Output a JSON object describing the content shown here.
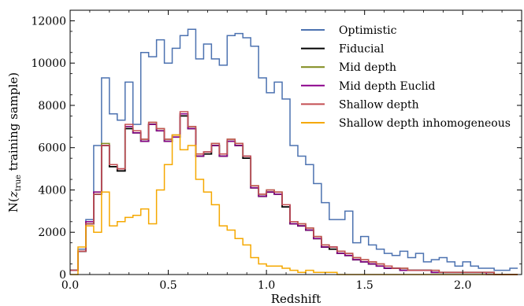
{
  "chart_data": {
    "type": "line",
    "title": "",
    "xlabel": "Redshift",
    "ylabel": "N(z_true training sample)",
    "ylabel_parts": {
      "prefix": "N(",
      "var": "z",
      "sub": "true",
      "suffix": " training sample)"
    },
    "xlim": [
      0.0,
      2.3
    ],
    "ylim": [
      0,
      12500
    ],
    "xticks": [
      0.0,
      0.5,
      1.0,
      1.5,
      2.0
    ],
    "xtick_labels": [
      "0.0",
      "0.5",
      "1.0",
      "1.5",
      "2.0"
    ],
    "yticks": [
      0,
      2000,
      4000,
      6000,
      8000,
      10000,
      12000
    ],
    "ytick_labels": [
      "0",
      "2000",
      "4000",
      "6000",
      "8000",
      "10000",
      "12000"
    ],
    "grid": false,
    "legend_position": "top-right",
    "bin_edges": [
      0.0,
      0.04,
      0.08,
      0.12,
      0.16,
      0.2,
      0.24,
      0.28,
      0.32,
      0.36,
      0.4,
      0.44,
      0.48,
      0.52,
      0.56,
      0.6,
      0.64,
      0.68,
      0.72,
      0.76,
      0.8,
      0.84,
      0.88,
      0.92,
      0.96,
      1.0,
      1.04,
      1.08,
      1.12,
      1.16,
      1.2,
      1.24,
      1.28,
      1.32,
      1.36,
      1.4,
      1.44,
      1.48,
      1.52,
      1.56,
      1.6,
      1.64,
      1.68,
      1.72,
      1.76,
      1.8,
      1.84,
      1.88,
      1.92,
      1.96,
      2.0,
      2.04,
      2.08,
      2.12,
      2.16,
      2.2,
      2.24,
      2.28
    ],
    "series": [
      {
        "name": "Optimistic",
        "color": "#4c72b0",
        "values": [
          200,
          1200,
          2600,
          6100,
          9300,
          7600,
          7300,
          9100,
          7100,
          10500,
          10300,
          11100,
          10000,
          10700,
          11300,
          11600,
          10200,
          10900,
          10200,
          9900,
          11300,
          11400,
          11200,
          10800,
          9300,
          8600,
          9100,
          8300,
          6100,
          5600,
          5200,
          4300,
          3400,
          2600,
          2600,
          3000,
          1500,
          1800,
          1400,
          1200,
          1000,
          900,
          1100,
          800,
          1000,
          600,
          700,
          800,
          600,
          400,
          600,
          400,
          300,
          300,
          200,
          200,
          300
        ]
      },
      {
        "name": "Fiducial",
        "color": "#000000",
        "values": [
          200,
          1100,
          2400,
          3800,
          6100,
          5100,
          4900,
          6900,
          6700,
          6300,
          7100,
          6800,
          6300,
          6500,
          7500,
          6900,
          5600,
          5700,
          6100,
          5600,
          6300,
          6100,
          5500,
          4100,
          3700,
          3900,
          3800,
          3200,
          2400,
          2300,
          2100,
          1700,
          1300,
          1200,
          1000,
          900,
          700,
          600,
          500,
          400,
          300,
          300,
          200,
          200,
          200,
          200,
          100,
          100,
          100,
          100,
          100,
          100,
          100,
          100,
          0,
          0,
          0
        ]
      },
      {
        "name": "Mid depth",
        "color": "#7f8a1a",
        "values": [
          200,
          1100,
          2500,
          3900,
          6200,
          5200,
          5000,
          7000,
          6800,
          6400,
          7200,
          6900,
          6400,
          6600,
          7600,
          7000,
          5700,
          5800,
          6200,
          5700,
          6400,
          6200,
          5600,
          4200,
          3800,
          4000,
          3900,
          3300,
          2500,
          2400,
          2200,
          1800,
          1400,
          1300,
          1100,
          1000,
          800,
          700,
          600,
          500,
          400,
          300,
          300,
          200,
          200,
          200,
          200,
          100,
          100,
          100,
          100,
          100,
          100,
          100,
          0,
          0,
          0
        ]
      },
      {
        "name": "Mid depth Euclid",
        "color": "#8b008b",
        "values": [
          200,
          1100,
          2500,
          3900,
          6100,
          5200,
          5000,
          7000,
          6700,
          6300,
          7100,
          6800,
          6300,
          6500,
          7600,
          6900,
          5600,
          5800,
          6100,
          5600,
          6300,
          6100,
          5600,
          4100,
          3700,
          3900,
          3800,
          3300,
          2400,
          2300,
          2100,
          1700,
          1300,
          1300,
          1000,
          900,
          700,
          600,
          500,
          400,
          300,
          300,
          200,
          200,
          200,
          200,
          100,
          100,
          100,
          100,
          100,
          100,
          100,
          0,
          0,
          0,
          0
        ]
      },
      {
        "name": "Shallow depth",
        "color": "#c44e52",
        "values": [
          200,
          1100,
          2400,
          3800,
          6100,
          5200,
          5000,
          7100,
          6800,
          6400,
          7200,
          6900,
          6400,
          6600,
          7700,
          7000,
          5700,
          5800,
          6200,
          5700,
          6400,
          6200,
          5600,
          4200,
          3800,
          4000,
          3900,
          3300,
          2500,
          2400,
          2200,
          1800,
          1400,
          1300,
          1100,
          1000,
          800,
          700,
          600,
          500,
          400,
          300,
          300,
          200,
          200,
          200,
          200,
          100,
          100,
          100,
          100,
          100,
          100,
          100,
          0,
          0,
          0
        ]
      },
      {
        "name": "Shallow depth inhomogeneous",
        "color": "#f5a800",
        "values": [
          0,
          1300,
          2300,
          2000,
          3900,
          2300,
          2500,
          2700,
          2800,
          3100,
          2400,
          4000,
          5200,
          6600,
          5900,
          6100,
          4500,
          3900,
          3300,
          2300,
          2100,
          1700,
          1400,
          800,
          500,
          400,
          400,
          300,
          200,
          100,
          200,
          100,
          100,
          100,
          0,
          0,
          0,
          0,
          0,
          0,
          0,
          0,
          0,
          0,
          0,
          0,
          0,
          0,
          0,
          0,
          0,
          0,
          0,
          0,
          0,
          0,
          0
        ]
      }
    ]
  }
}
